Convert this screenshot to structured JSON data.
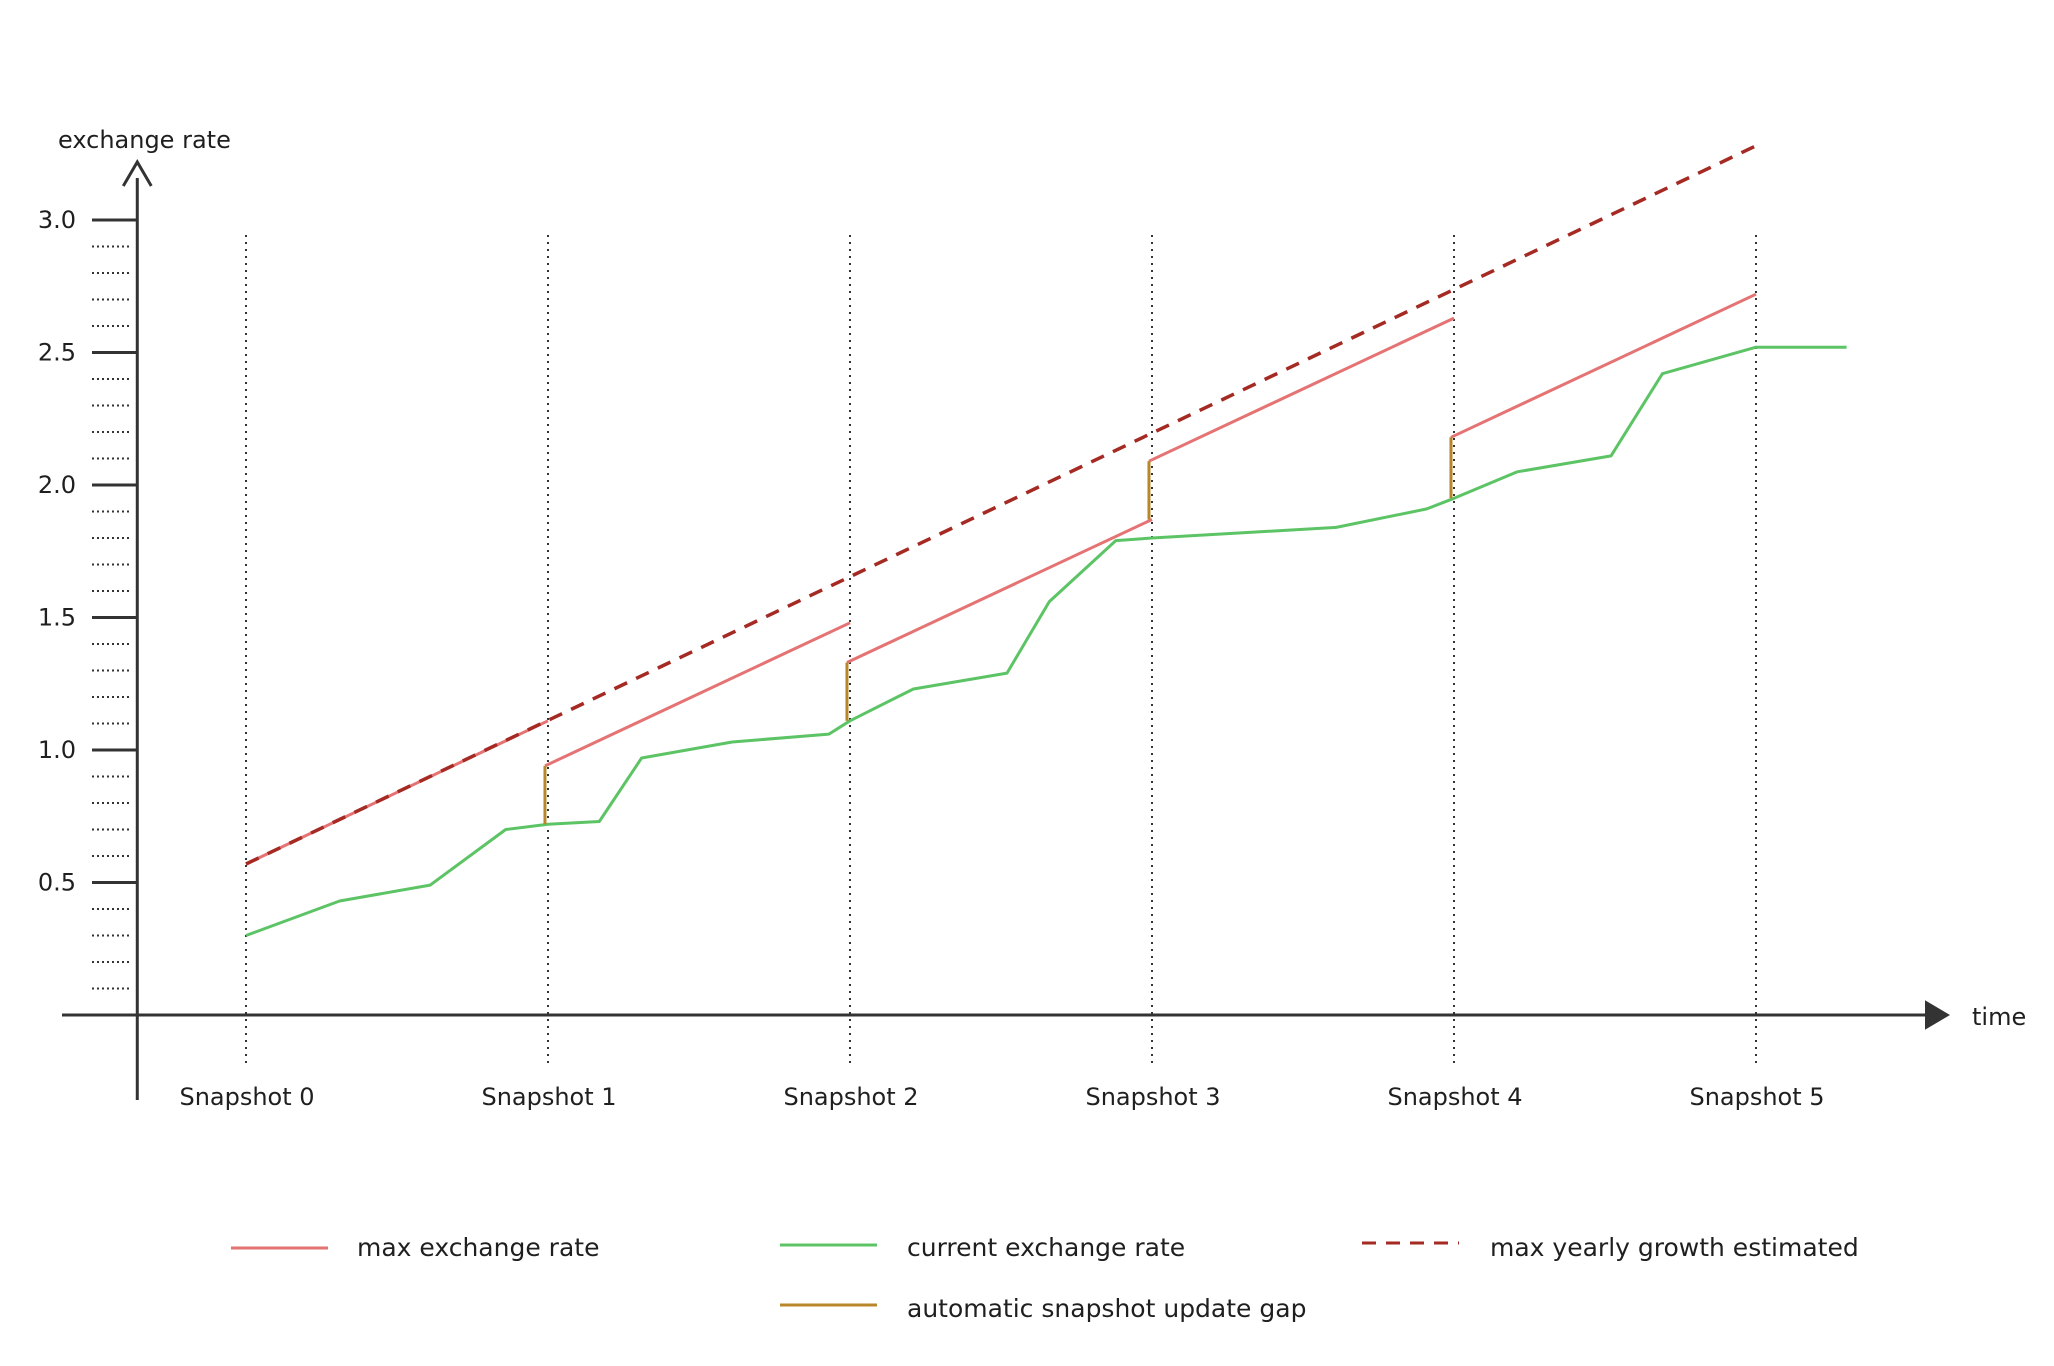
{
  "chart_data": {
    "type": "line",
    "title": "",
    "ylabel": "exchange rate",
    "xlabel": "time",
    "ylim": [
      0,
      3.0
    ],
    "y_ticks": [
      "0.5",
      "1.0",
      "1.5",
      "2.0",
      "2.5",
      "3.0"
    ],
    "y_tick_values": [
      0.5,
      1.0,
      1.5,
      2.0,
      2.5,
      3.0
    ],
    "x_range": [
      -0.36,
      5.9
    ],
    "categories": [
      "Snapshot 0",
      "Snapshot 1",
      "Snapshot 2",
      "Snapshot 3",
      "Snapshot 4",
      "Snapshot 5"
    ],
    "category_x": [
      0,
      1,
      2,
      3,
      4,
      5
    ],
    "grid": "vertical dotted lines at snapshots",
    "legend_placement": "bottom",
    "series": [
      {
        "name": "max exchange rate",
        "color": "#e57373",
        "style": "solid",
        "segments": [
          [
            [
              0,
              0.57
            ],
            [
              1,
              1.11
            ]
          ],
          [
            [
              0,
              0.57
            ],
            [
              1,
              1.11
            ]
          ],
          [
            [
              0,
              0.57
            ],
            [
              1,
              1.11
            ]
          ]
        ]
      },
      {
        "name": "current exchange rate",
        "color": "#5cc465",
        "style": "solid",
        "points": []
      },
      {
        "name": "max yearly growth estimated",
        "color": "#a52a23",
        "style": "dashed",
        "points": [
          [
            0,
            0.57
          ],
          [
            5,
            3.28
          ]
        ]
      },
      {
        "name": "automatic snapshot update gap",
        "color": "#b8862b",
        "style": "solid",
        "gaps": []
      }
    ]
  },
  "legend": [
    {
      "label": "max exchange rate",
      "color": "#e57373",
      "style": "solid"
    },
    {
      "label": "current exchange rate",
      "color": "#5cc465",
      "style": "solid"
    },
    {
      "label": "max yearly growth estimated",
      "color": "#a52a23",
      "style": "dashed"
    },
    {
      "label": "automatic snapshot update gap",
      "color": "#b8862b",
      "style": "solid"
    }
  ]
}
